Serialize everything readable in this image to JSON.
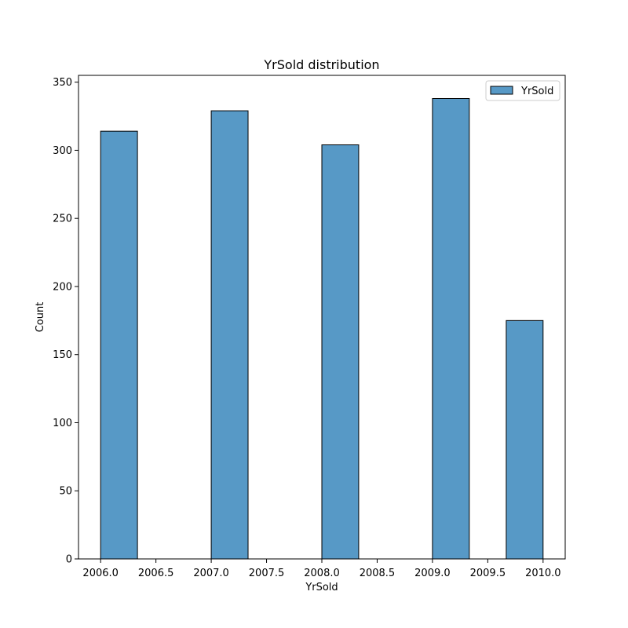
{
  "chart_data": {
    "type": "bar",
    "title": "YrSold distribution",
    "xlabel": "YrSold",
    "ylabel": "Count",
    "xlim": [
      2005.8,
      2010.2
    ],
    "ylim": [
      0,
      355
    ],
    "x_ticks": [
      2006.0,
      2006.5,
      2007.0,
      2007.5,
      2008.0,
      2008.5,
      2009.0,
      2009.5,
      2010.0
    ],
    "x_tick_labels": [
      "2006.0",
      "2006.5",
      "2007.0",
      "2007.5",
      "2008.0",
      "2008.5",
      "2009.0",
      "2009.5",
      "2010.0"
    ],
    "y_ticks": [
      0,
      50,
      100,
      150,
      200,
      250,
      300,
      350
    ],
    "y_tick_labels": [
      "0",
      "50",
      "100",
      "150",
      "200",
      "250",
      "300",
      "350"
    ],
    "bins": [
      {
        "x_start": 2006.0,
        "x_end": 2006.333,
        "value": 314
      },
      {
        "x_start": 2007.0,
        "x_end": 2007.333,
        "value": 329
      },
      {
        "x_start": 2008.0,
        "x_end": 2008.333,
        "value": 304
      },
      {
        "x_start": 2009.0,
        "x_end": 2009.333,
        "value": 338
      },
      {
        "x_start": 2009.667,
        "x_end": 2010.0,
        "value": 175
      }
    ],
    "series": [
      {
        "name": "YrSold",
        "color": "#5799c6"
      }
    ],
    "legend_position": "upper right",
    "grid": false
  }
}
